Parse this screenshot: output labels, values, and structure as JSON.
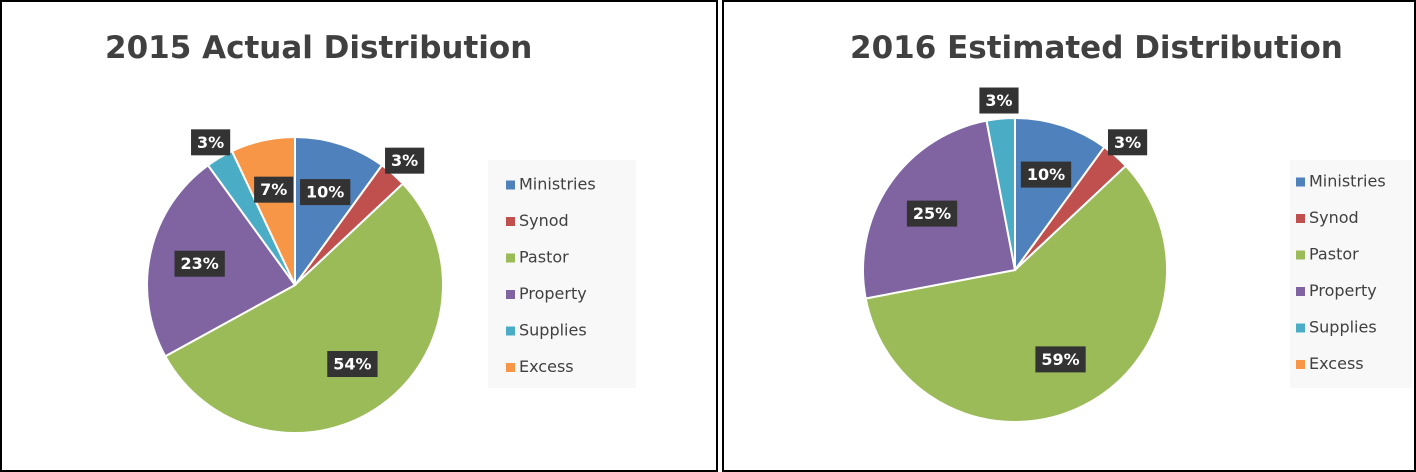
{
  "chart_data": [
    {
      "type": "pie",
      "title": "2015 Actual Distribution",
      "categories": [
        "Ministries",
        "Synod",
        "Pastor",
        "Property",
        "Supplies",
        "Excess"
      ],
      "values": [
        10,
        3,
        54,
        23,
        3,
        7
      ],
      "value_labels": [
        "10%",
        "3%",
        "54%",
        "23%",
        "3%",
        "7%"
      ],
      "colors": [
        "#4f81bd",
        "#c0504d",
        "#9bbb59",
        "#8064a2",
        "#4bacc6",
        "#f79646"
      ],
      "legend": "right"
    },
    {
      "type": "pie",
      "title": "2016 Estimated Distribution",
      "categories": [
        "Ministries",
        "Synod",
        "Pastor",
        "Property",
        "Supplies",
        "Excess"
      ],
      "values": [
        10,
        3,
        59,
        25,
        3,
        0
      ],
      "value_labels": [
        "10%",
        "3%",
        "59%",
        "25%",
        "3%",
        null
      ],
      "colors": [
        "#4f81bd",
        "#c0504d",
        "#9bbb59",
        "#8064a2",
        "#4bacc6",
        "#f79646"
      ],
      "legend": "right"
    }
  ]
}
